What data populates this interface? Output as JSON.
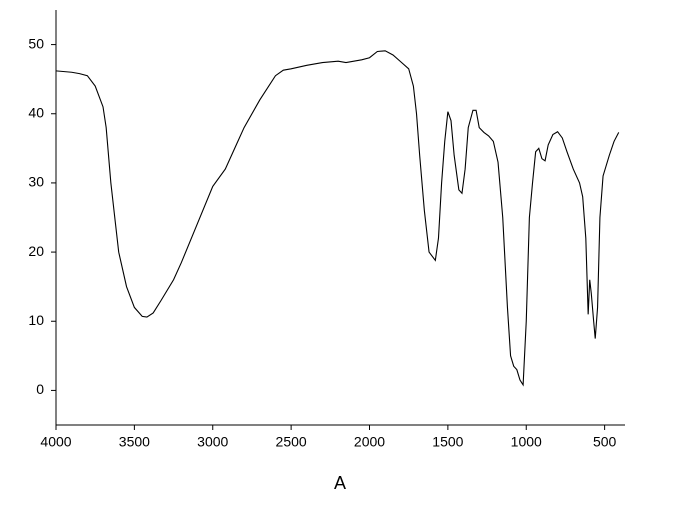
{
  "chart_data": {
    "type": "line",
    "x_label": "A",
    "x": [
      4000,
      3900,
      3850,
      3800,
      3750,
      3700,
      3680,
      3650,
      3620,
      3600,
      3550,
      3500,
      3450,
      3420,
      3380,
      3330,
      3250,
      3200,
      3100,
      3000,
      2920,
      2850,
      2800,
      2700,
      2600,
      2550,
      2500,
      2400,
      2300,
      2200,
      2150,
      2050,
      2000,
      1950,
      1900,
      1850,
      1800,
      1750,
      1720,
      1700,
      1680,
      1650,
      1620,
      1580,
      1560,
      1540,
      1520,
      1500,
      1480,
      1460,
      1430,
      1410,
      1390,
      1370,
      1340,
      1320,
      1300,
      1270,
      1240,
      1210,
      1180,
      1150,
      1120,
      1100,
      1080,
      1060,
      1040,
      1020,
      1000,
      980,
      960,
      940,
      920,
      900,
      880,
      860,
      830,
      800,
      770,
      740,
      700,
      660,
      640,
      620,
      605,
      595,
      585,
      570,
      560,
      545,
      530,
      510,
      490,
      470,
      440,
      410
    ],
    "series": [
      {
        "name": "A",
        "color": "#000000",
        "values": [
          46.2,
          46,
          45.8,
          45.5,
          44,
          41,
          38,
          30,
          24,
          20,
          15,
          12,
          10.7,
          10.6,
          11.2,
          13,
          16,
          18.5,
          24,
          29.5,
          32,
          35.5,
          38,
          42,
          45.5,
          46.3,
          46.5,
          47,
          47.4,
          47.6,
          47.4,
          47.8,
          48.1,
          49,
          49.1,
          48.5,
          47.5,
          46.5,
          44,
          40,
          34,
          26,
          20,
          18.8,
          22,
          30,
          36,
          40.3,
          39,
          34,
          29,
          28.5,
          32,
          38,
          40.5,
          40.5,
          38,
          37.3,
          36.8,
          36,
          33,
          25,
          12,
          5,
          3.5,
          3,
          1.5,
          0.8,
          10,
          25,
          30,
          34.5,
          35,
          33.5,
          33.2,
          35.5,
          37,
          37.4,
          36.5,
          34.5,
          32,
          30,
          28,
          22,
          11,
          16,
          14,
          10,
          7.5,
          12,
          25,
          31,
          32.5,
          34,
          36,
          37.3
        ]
      }
    ],
    "xlim": [
      4000,
      370
    ],
    "xticks": [
      4000,
      3500,
      3000,
      2500,
      2000,
      1500,
      1000,
      500
    ],
    "ylim": [
      -5,
      55
    ],
    "yticks": [
      0,
      10,
      20,
      30,
      40,
      50
    ]
  }
}
